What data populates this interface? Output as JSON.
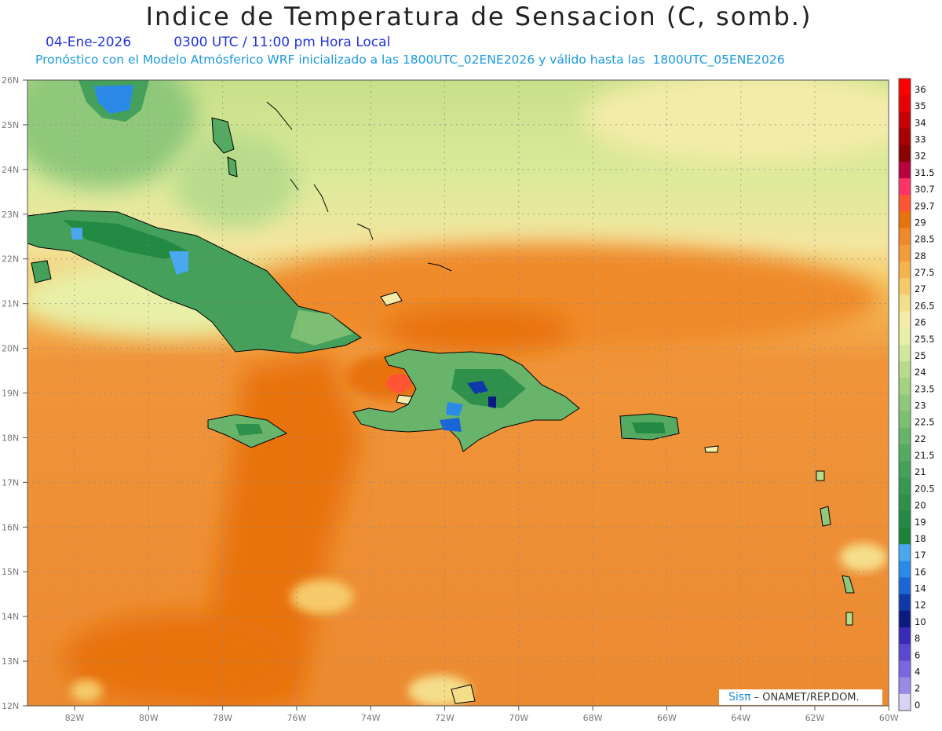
{
  "title": "Indice de Temperatura de Sensacion (C, somb.)",
  "date": "04-Ene-2026",
  "time_label": "0300 UTC / 11:00 pm Hora Local",
  "forecast_info": "Pronóstico con el Modelo Atmósferico WRF inicializado a las 1800UTC_02ENE2026 y válido hasta las  1800UTC_05ENE2026",
  "credit": {
    "brand": "Sisπ",
    "org": " – ONAMET/REP.DOM."
  },
  "lat_labels": [
    "26N",
    "25N",
    "24N",
    "23N",
    "22N",
    "21N",
    "20N",
    "19N",
    "18N",
    "17N",
    "16N",
    "15N",
    "14N",
    "13N",
    "12N"
  ],
  "lon_labels": [
    "82W",
    "80W",
    "78W",
    "76W",
    "74W",
    "72W",
    "70W",
    "68W",
    "66W",
    "64W",
    "62W",
    "60W"
  ],
  "colorbar": {
    "levels": [
      "36",
      "35",
      "34",
      "33",
      "32",
      "31.5",
      "30.7",
      "29.7",
      "29",
      "28.5",
      "28",
      "27.5",
      "27",
      "26.5",
      "26",
      "25.5",
      "25",
      "24",
      "23.5",
      "23",
      "22.5",
      "22",
      "21.5",
      "21",
      "20.5",
      "20",
      "19",
      "18",
      "17",
      "16",
      "14",
      "12",
      "10",
      "8",
      "6",
      "4",
      "2",
      "0"
    ],
    "colors": [
      "#ff0000",
      "#e80000",
      "#c80000",
      "#a80000",
      "#8b0000",
      "#b80040",
      "#ff3366",
      "#ff5533",
      "#e8730a",
      "#ef8a2c",
      "#f29d3a",
      "#f5b34e",
      "#f6ca6a",
      "#f5de8a",
      "#f3eca8",
      "#e8f0a8",
      "#d0e89c",
      "#b8dc8c",
      "#a3d282",
      "#8fc87a",
      "#7cbe72",
      "#68b46a",
      "#55aa62",
      "#44a05a",
      "#389852",
      "#2e904a",
      "#228a42",
      "#1a8438",
      "#4aa8f0",
      "#2b8ae8",
      "#1a66d6",
      "#0d3aa8",
      "#0a1a80",
      "#3a2ab8",
      "#5a48d0",
      "#7a66e0",
      "#9a8ae8",
      "#d8d4f4"
    ]
  },
  "colors": {
    "ocean_warm": "#e8730a",
    "ocean_mid": "#f29d3a",
    "north": "#c8e08a",
    "land": "#44a05a"
  }
}
